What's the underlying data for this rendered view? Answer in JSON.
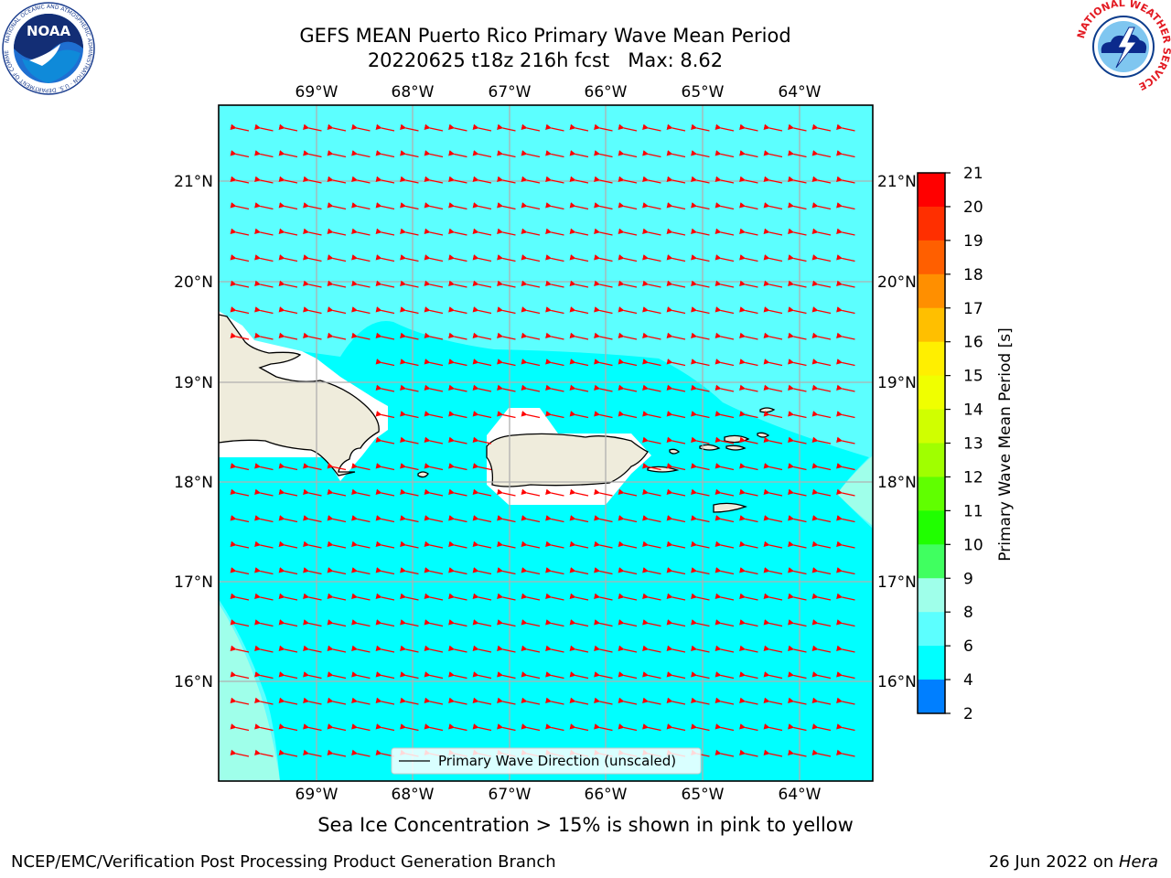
{
  "title": {
    "line1": "GEFS MEAN Puerto Rico Primary Wave Mean Period",
    "line2": "20220625 t18z 216h fcst   Max: 8.62"
  },
  "map": {
    "lon_labels": [
      "69°W",
      "68°W",
      "67°W",
      "66°W",
      "65°W",
      "64°W"
    ],
    "lat_labels": [
      "21°N",
      "20°N",
      "19°N",
      "18°N",
      "17°N",
      "16°N"
    ],
    "legend_label": "Primary Wave Direction (unscaled)",
    "colors": {
      "period_6_8": "#00ffff",
      "period_8_9": "#5cffff",
      "period_9_10": "#9fffea",
      "land": "#efecdc",
      "arrow": "#ff0000"
    }
  },
  "colorbar": {
    "label": "Primary Wave Mean Period [s]",
    "ticks": [
      "21",
      "20",
      "19",
      "18",
      "17",
      "16",
      "15",
      "14",
      "13",
      "12",
      "11",
      "10",
      "9",
      "8",
      "6",
      "4",
      "2"
    ],
    "colors": [
      "#ff0000",
      "#ff2f00",
      "#ff5f00",
      "#ff8f00",
      "#ffbf00",
      "#ffef00",
      "#f0ff00",
      "#d0ff00",
      "#a0ff00",
      "#60ff00",
      "#20ff00",
      "#40ff60",
      "#9fffea",
      "#5cffff",
      "#00ffff",
      "#007fff",
      "#0000ff"
    ]
  },
  "note": "Sea Ice Concentration > 15% is shown in pink to yellow",
  "footer": {
    "left": "NCEP/EMC/Verification Post Processing Product Generation Branch",
    "right_prefix": "26 Jun 2022 on ",
    "right_host": "Hera"
  },
  "logos": {
    "left_text": "NOAA",
    "left_ring": "NATIONAL OCEANIC AND ATMOSPHERIC ADMINISTRATION · U.S. DEPARTMENT OF COMMERCE",
    "right_ring": "NATIONAL WEATHER SERVICE"
  }
}
